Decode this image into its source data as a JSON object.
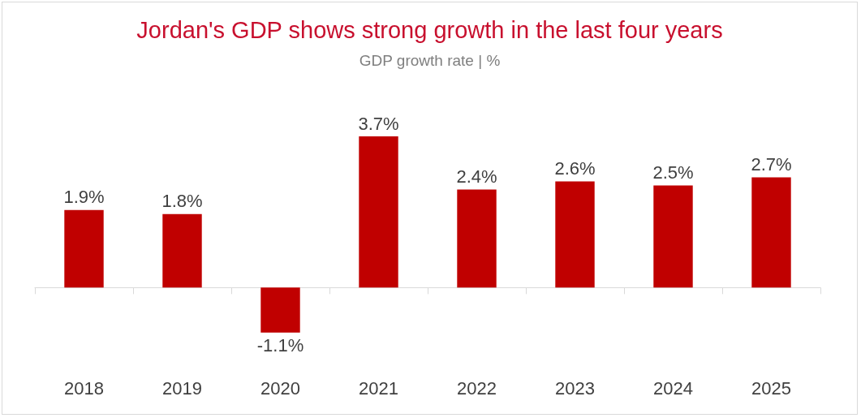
{
  "chart_data": {
    "type": "bar",
    "title": "Jordan's GDP shows strong growth in the last four years",
    "subtitle": "GDP growth rate | %",
    "categories": [
      "2018",
      "2019",
      "2020",
      "2021",
      "2022",
      "2023",
      "2024",
      "2025"
    ],
    "values": [
      1.9,
      1.8,
      -1.1,
      3.7,
      2.4,
      2.6,
      2.5,
      2.7
    ],
    "value_labels": [
      "1.9%",
      "1.8%",
      "-1.1%",
      "3.7%",
      "2.4%",
      "2.6%",
      "2.5%",
      "2.7%"
    ],
    "color": "#c00000"
  }
}
